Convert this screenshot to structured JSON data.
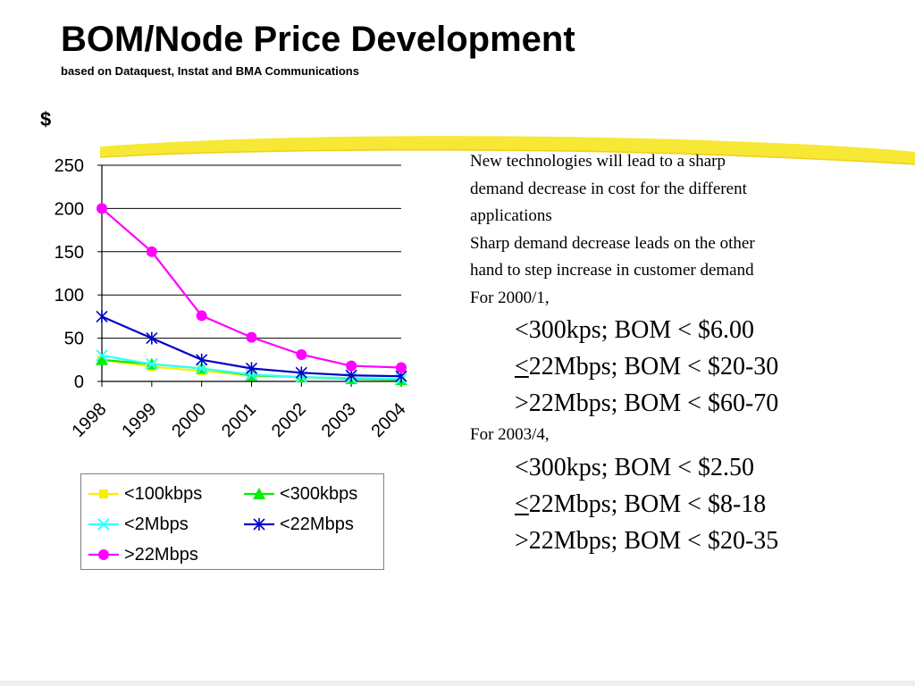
{
  "slide": {
    "title": "BOM/Node Price Development",
    "subtitle": "based on Dataquest, Instat and BMA Communications"
  },
  "colors": {
    "highlight": "#f5e61e",
    "series_100kbps": "#f5f000",
    "series_300kbps": "#00ee00",
    "series_2mbps": "#33ffff",
    "series_22mbps_low": "#0000cc",
    "series_22mbps_high": "#ff00ff"
  },
  "chart_data": {
    "type": "line",
    "ylabel": "$",
    "xlabel": "",
    "x": [
      "1998",
      "1999",
      "2000",
      "2001",
      "2002",
      "2003",
      "2004"
    ],
    "ylim": [
      0,
      250
    ],
    "yticks": [
      "0",
      "50",
      "100",
      "150",
      "200",
      "250"
    ],
    "grid": true,
    "legend_position": "bottom",
    "series": [
      {
        "name": "<100kbps",
        "marker": "square",
        "values": [
          25,
          17,
          12,
          7,
          5,
          3,
          2
        ]
      },
      {
        "name": "<300kbps",
        "marker": "triangle",
        "values": [
          25,
          20,
          15,
          7,
          5,
          3,
          2
        ]
      },
      {
        "name": "<2Mbps",
        "marker": "x",
        "values": [
          30,
          20,
          15,
          8,
          5,
          4,
          3
        ]
      },
      {
        "name": "<22Mbps",
        "marker": "star",
        "values": [
          75,
          50,
          25,
          15,
          10,
          7,
          6
        ]
      },
      {
        "name": ">22Mbps",
        "marker": "circle",
        "values": [
          200,
          150,
          76,
          51,
          31,
          18,
          16
        ]
      }
    ]
  },
  "notes": {
    "line1": "New technologies will lead to a sharp",
    "line2": "demand decrease in cost for the different",
    "line3": "applications",
    "line4": "Sharp demand decrease leads on the other",
    "line5": "hand to step increase in customer demand",
    "period1_label": "For 2000/1,",
    "period1_item1": "<300kps;  BOM < $6.00",
    "period1_item2_prefix": "<",
    "period1_item2_rest": "22Mbps;  BOM < $20-30",
    "period1_item3": ">22Mbps;  BOM < $60-70",
    "period2_label": "For 2003/4,",
    "period2_item1": "<300kps;  BOM < $2.50",
    "period2_item2_prefix": "<",
    "period2_item2_rest": "22Mbps;  BOM < $8-18",
    "period2_item3": ">22Mbps;  BOM < $20-35"
  }
}
